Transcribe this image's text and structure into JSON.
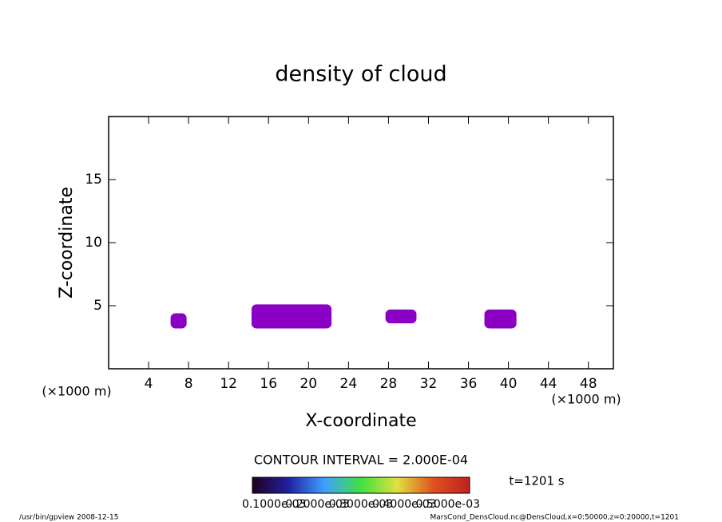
{
  "chart_data": {
    "type": "contour",
    "title": "density of cloud",
    "xlabel": "X-coordinate",
    "ylabel": "Z-coordinate",
    "x_unit": "(×1000 m)",
    "y_unit": "(×1000 m)",
    "xlim": [
      0,
      50.5
    ],
    "ylim": [
      0,
      20
    ],
    "xticks": [
      4,
      8,
      12,
      16,
      20,
      24,
      28,
      32,
      36,
      40,
      44,
      48
    ],
    "yticks": [
      5,
      10,
      15
    ],
    "color": "#8a00c4",
    "regions": [
      {
        "x": [
          6.2,
          7.8
        ],
        "z": [
          3.2,
          4.4
        ]
      },
      {
        "x": [
          14.3,
          22.3
        ],
        "z": [
          3.2,
          5.1
        ]
      },
      {
        "x": [
          27.7,
          30.8
        ],
        "z": [
          3.6,
          4.7
        ]
      },
      {
        "x": [
          37.6,
          40.8
        ],
        "z": [
          3.2,
          4.7
        ]
      }
    ],
    "contour_interval": "CONTOUR INTERVAL = 2.000E-04",
    "time_label": "t=1201 s",
    "colorbar_colors": [
      "#200020",
      "#2020a0",
      "#40a0ff",
      "#40e040",
      "#e0e040",
      "#e05020",
      "#c02020"
    ],
    "colorbar_labels": [
      "0.1000e-03",
      "0.2000e-03",
      "0.3000e-03",
      "0.4000e-03",
      "0.5000e-03"
    ],
    "footer_left": "/usr/bin/gpview   2008-12-15",
    "footer_right": "MarsCond_DensCloud.nc@DensCloud,x=0:50000,z=0:20000,t=1201"
  }
}
